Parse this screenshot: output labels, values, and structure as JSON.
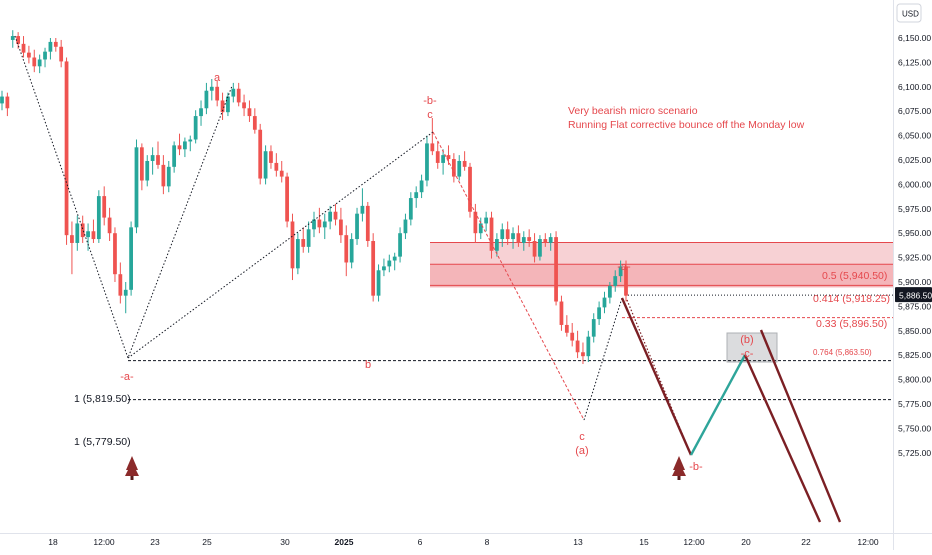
{
  "chart_data": {
    "type": "candlestick",
    "currency": "USD",
    "y_ticks": [
      "6,150.00",
      "6,125.00",
      "6,100.00",
      "6,075.00",
      "6,050.00",
      "6,025.00",
      "6,000.00",
      "5,975.00",
      "5,950.00",
      "5,925.00",
      "5,900.00",
      "5,875.00",
      "5,850.00",
      "5,825.00",
      "5,800.00",
      "5,775.00",
      "5,750.00",
      "5,725.00"
    ],
    "x_ticks": [
      "18",
      "12:00",
      "23",
      "25",
      "30",
      "2025",
      "6",
      "8",
      "13",
      "15",
      "12:00",
      "20",
      "22",
      "12:00"
    ],
    "price_label": "5,886.50",
    "price_value": 5886.5,
    "ylim": [
      5712,
      6183
    ],
    "annotations": {
      "title_line1": "Very bearish micro scenario",
      "title_line2": "Running Flat corrective bounce off the Monday low",
      "wave_a_top": "a",
      "wave_neg_a_low": "-a-",
      "wave_b_low": "b",
      "wave_neg_b_top": "-b-",
      "wave_c_top": "c",
      "wave_c_low": "c",
      "wave_paren_a": "(a)",
      "wave_neg_a_right": "-a-",
      "wave_paren_b": "(b)",
      "wave_neg_c": "-c-",
      "wave_neg_b_proj": "-b-"
    },
    "levels": [
      {
        "label": "0.5 (5,940.50)",
        "value": 5940.5
      },
      {
        "label": "0.414 (5,918.25)",
        "value": 5918.25
      },
      {
        "label": "0.33 (5,896.50)",
        "value": 5896.5
      },
      {
        "label": "0.764 (5,863.50)",
        "value": 5863.5
      },
      {
        "label": "1 (5,819.50)",
        "value": 5819.5
      },
      {
        "label": "1 (5,779.50)",
        "value": 5779.5
      }
    ],
    "candles": [
      {
        "o": 6083,
        "h": 6096,
        "l": 6076,
        "c": 6090
      },
      {
        "o": 6090,
        "h": 6094,
        "l": 6070,
        "c": 6078
      },
      {
        "o": 6148,
        "h": 6158,
        "l": 6140,
        "c": 6152
      },
      {
        "o": 6152,
        "h": 6156,
        "l": 6139,
        "c": 6144
      },
      {
        "o": 6144,
        "h": 6152,
        "l": 6130,
        "c": 6135
      },
      {
        "o": 6135,
        "h": 6142,
        "l": 6124,
        "c": 6130
      },
      {
        "o": 6130,
        "h": 6138,
        "l": 6115,
        "c": 6121
      },
      {
        "o": 6121,
        "h": 6133,
        "l": 6114,
        "c": 6128
      },
      {
        "o": 6128,
        "h": 6140,
        "l": 6120,
        "c": 6136
      },
      {
        "o": 6136,
        "h": 6150,
        "l": 6128,
        "c": 6146
      },
      {
        "o": 6146,
        "h": 6150,
        "l": 6136,
        "c": 6141
      },
      {
        "o": 6141,
        "h": 6148,
        "l": 6120,
        "c": 6126
      },
      {
        "o": 6126,
        "h": 6130,
        "l": 5938,
        "c": 5948
      },
      {
        "o": 5948,
        "h": 5962,
        "l": 5908,
        "c": 5940
      },
      {
        "o": 5940,
        "h": 5968,
        "l": 5932,
        "c": 5960
      },
      {
        "o": 5960,
        "h": 5968,
        "l": 5940,
        "c": 5946
      },
      {
        "o": 5946,
        "h": 5960,
        "l": 5932,
        "c": 5952
      },
      {
        "o": 5952,
        "h": 5964,
        "l": 5940,
        "c": 5944
      },
      {
        "o": 5944,
        "h": 5994,
        "l": 5940,
        "c": 5988
      },
      {
        "o": 5988,
        "h": 5998,
        "l": 5958,
        "c": 5966
      },
      {
        "o": 5966,
        "h": 5976,
        "l": 5942,
        "c": 5950
      },
      {
        "o": 5950,
        "h": 5956,
        "l": 5900,
        "c": 5908
      },
      {
        "o": 5908,
        "h": 5920,
        "l": 5878,
        "c": 5886
      },
      {
        "o": 5886,
        "h": 5900,
        "l": 5868,
        "c": 5892
      },
      {
        "o": 5892,
        "h": 5962,
        "l": 5886,
        "c": 5956
      },
      {
        "o": 5956,
        "h": 6046,
        "l": 5950,
        "c": 6038
      },
      {
        "o": 6038,
        "h": 6042,
        "l": 5994,
        "c": 6004
      },
      {
        "o": 6004,
        "h": 6030,
        "l": 5998,
        "c": 6024
      },
      {
        "o": 6024,
        "h": 6038,
        "l": 6010,
        "c": 6030
      },
      {
        "o": 6030,
        "h": 6044,
        "l": 6016,
        "c": 6020
      },
      {
        "o": 6020,
        "h": 6030,
        "l": 5990,
        "c": 5998
      },
      {
        "o": 5998,
        "h": 6024,
        "l": 5992,
        "c": 6018
      },
      {
        "o": 6018,
        "h": 6044,
        "l": 6012,
        "c": 6040
      },
      {
        "o": 6040,
        "h": 6052,
        "l": 6030,
        "c": 6036
      },
      {
        "o": 6036,
        "h": 6048,
        "l": 6028,
        "c": 6044
      },
      {
        "o": 6044,
        "h": 6050,
        "l": 6034,
        "c": 6046
      },
      {
        "o": 6046,
        "h": 6076,
        "l": 6042,
        "c": 6070
      },
      {
        "o": 6070,
        "h": 6086,
        "l": 6060,
        "c": 6078
      },
      {
        "o": 6078,
        "h": 6104,
        "l": 6072,
        "c": 6096
      },
      {
        "o": 6096,
        "h": 6108,
        "l": 6086,
        "c": 6100
      },
      {
        "o": 6100,
        "h": 6106,
        "l": 6080,
        "c": 6086
      },
      {
        "o": 6086,
        "h": 6094,
        "l": 6066,
        "c": 6074
      },
      {
        "o": 6074,
        "h": 6094,
        "l": 6070,
        "c": 6090
      },
      {
        "o": 6090,
        "h": 6104,
        "l": 6084,
        "c": 6098
      },
      {
        "o": 6098,
        "h": 6104,
        "l": 6080,
        "c": 6084
      },
      {
        "o": 6084,
        "h": 6092,
        "l": 6070,
        "c": 6078
      },
      {
        "o": 6078,
        "h": 6086,
        "l": 6064,
        "c": 6070
      },
      {
        "o": 6070,
        "h": 6078,
        "l": 6052,
        "c": 6056
      },
      {
        "o": 6056,
        "h": 6062,
        "l": 6000,
        "c": 6006
      },
      {
        "o": 6006,
        "h": 6040,
        "l": 6000,
        "c": 6034
      },
      {
        "o": 6034,
        "h": 6040,
        "l": 6016,
        "c": 6022
      },
      {
        "o": 6022,
        "h": 6032,
        "l": 6008,
        "c": 6014
      },
      {
        "o": 6014,
        "h": 6024,
        "l": 6002,
        "c": 6008
      },
      {
        "o": 6008,
        "h": 6012,
        "l": 5956,
        "c": 5962
      },
      {
        "o": 5962,
        "h": 5970,
        "l": 5902,
        "c": 5914
      },
      {
        "o": 5914,
        "h": 5950,
        "l": 5908,
        "c": 5944
      },
      {
        "o": 5944,
        "h": 5956,
        "l": 5930,
        "c": 5936
      },
      {
        "o": 5936,
        "h": 5962,
        "l": 5930,
        "c": 5954
      },
      {
        "o": 5954,
        "h": 5972,
        "l": 5946,
        "c": 5964
      },
      {
        "o": 5964,
        "h": 5976,
        "l": 5950,
        "c": 5956
      },
      {
        "o": 5956,
        "h": 5970,
        "l": 5944,
        "c": 5962
      },
      {
        "o": 5962,
        "h": 5978,
        "l": 5954,
        "c": 5972
      },
      {
        "o": 5972,
        "h": 5980,
        "l": 5958,
        "c": 5964
      },
      {
        "o": 5964,
        "h": 5976,
        "l": 5940,
        "c": 5948
      },
      {
        "o": 5948,
        "h": 5958,
        "l": 5906,
        "c": 5920
      },
      {
        "o": 5920,
        "h": 5950,
        "l": 5914,
        "c": 5944
      },
      {
        "o": 5944,
        "h": 5976,
        "l": 5938,
        "c": 5970
      },
      {
        "o": 5970,
        "h": 5996,
        "l": 5962,
        "c": 5978
      },
      {
        "o": 5978,
        "h": 5982,
        "l": 5936,
        "c": 5942
      },
      {
        "o": 5942,
        "h": 5950,
        "l": 5880,
        "c": 5886
      },
      {
        "o": 5886,
        "h": 5918,
        "l": 5880,
        "c": 5912
      },
      {
        "o": 5912,
        "h": 5924,
        "l": 5906,
        "c": 5916
      },
      {
        "o": 5916,
        "h": 5928,
        "l": 5910,
        "c": 5922
      },
      {
        "o": 5922,
        "h": 5930,
        "l": 5912,
        "c": 5926
      },
      {
        "o": 5926,
        "h": 5956,
        "l": 5920,
        "c": 5950
      },
      {
        "o": 5950,
        "h": 5970,
        "l": 5944,
        "c": 5964
      },
      {
        "o": 5964,
        "h": 5992,
        "l": 5958,
        "c": 5986
      },
      {
        "o": 5986,
        "h": 5998,
        "l": 5976,
        "c": 5992
      },
      {
        "o": 5992,
        "h": 6010,
        "l": 5986,
        "c": 6004
      },
      {
        "o": 6004,
        "h": 6050,
        "l": 5998,
        "c": 6042
      },
      {
        "o": 6042,
        "h": 6068,
        "l": 6030,
        "c": 6034
      },
      {
        "o": 6034,
        "h": 6044,
        "l": 6016,
        "c": 6022
      },
      {
        "o": 6022,
        "h": 6036,
        "l": 6010,
        "c": 6030
      },
      {
        "o": 6030,
        "h": 6040,
        "l": 6020,
        "c": 6026
      },
      {
        "o": 6026,
        "h": 6032,
        "l": 6002,
        "c": 6008
      },
      {
        "o": 6008,
        "h": 6030,
        "l": 6004,
        "c": 6024
      },
      {
        "o": 6024,
        "h": 6034,
        "l": 6014,
        "c": 6018
      },
      {
        "o": 6018,
        "h": 6022,
        "l": 5966,
        "c": 5972
      },
      {
        "o": 5972,
        "h": 5980,
        "l": 5940,
        "c": 5950
      },
      {
        "o": 5950,
        "h": 5966,
        "l": 5944,
        "c": 5960
      },
      {
        "o": 5960,
        "h": 5972,
        "l": 5952,
        "c": 5966
      },
      {
        "o": 5966,
        "h": 5972,
        "l": 5924,
        "c": 5932
      },
      {
        "o": 5932,
        "h": 5950,
        "l": 5926,
        "c": 5944
      },
      {
        "o": 5944,
        "h": 5960,
        "l": 5936,
        "c": 5954
      },
      {
        "o": 5954,
        "h": 5962,
        "l": 5938,
        "c": 5944
      },
      {
        "o": 5944,
        "h": 5956,
        "l": 5934,
        "c": 5950
      },
      {
        "o": 5950,
        "h": 5958,
        "l": 5936,
        "c": 5940
      },
      {
        "o": 5940,
        "h": 5952,
        "l": 5932,
        "c": 5946
      },
      {
        "o": 5946,
        "h": 5954,
        "l": 5936,
        "c": 5942
      },
      {
        "o": 5942,
        "h": 5950,
        "l": 5920,
        "c": 5926
      },
      {
        "o": 5926,
        "h": 5948,
        "l": 5922,
        "c": 5944
      },
      {
        "o": 5944,
        "h": 5950,
        "l": 5936,
        "c": 5940
      },
      {
        "o": 5940,
        "h": 5950,
        "l": 5932,
        "c": 5946
      },
      {
        "o": 5946,
        "h": 5952,
        "l": 5876,
        "c": 5880
      },
      {
        "o": 5880,
        "h": 5886,
        "l": 5850,
        "c": 5856
      },
      {
        "o": 5856,
        "h": 5866,
        "l": 5844,
        "c": 5848
      },
      {
        "o": 5848,
        "h": 5858,
        "l": 5834,
        "c": 5840
      },
      {
        "o": 5840,
        "h": 5850,
        "l": 5822,
        "c": 5828
      },
      {
        "o": 5828,
        "h": 5838,
        "l": 5816,
        "c": 5824
      },
      {
        "o": 5824,
        "h": 5850,
        "l": 5818,
        "c": 5844
      },
      {
        "o": 5844,
        "h": 5868,
        "l": 5838,
        "c": 5862
      },
      {
        "o": 5862,
        "h": 5880,
        "l": 5856,
        "c": 5874
      },
      {
        "o": 5874,
        "h": 5890,
        "l": 5868,
        "c": 5884
      },
      {
        "o": 5884,
        "h": 5900,
        "l": 5878,
        "c": 5896
      },
      {
        "o": 5896,
        "h": 5912,
        "l": 5890,
        "c": 5906
      },
      {
        "o": 5906,
        "h": 5922,
        "l": 5900,
        "c": 5916
      },
      {
        "o": 5916,
        "h": 5922,
        "l": 5880,
        "c": 5886
      }
    ]
  }
}
